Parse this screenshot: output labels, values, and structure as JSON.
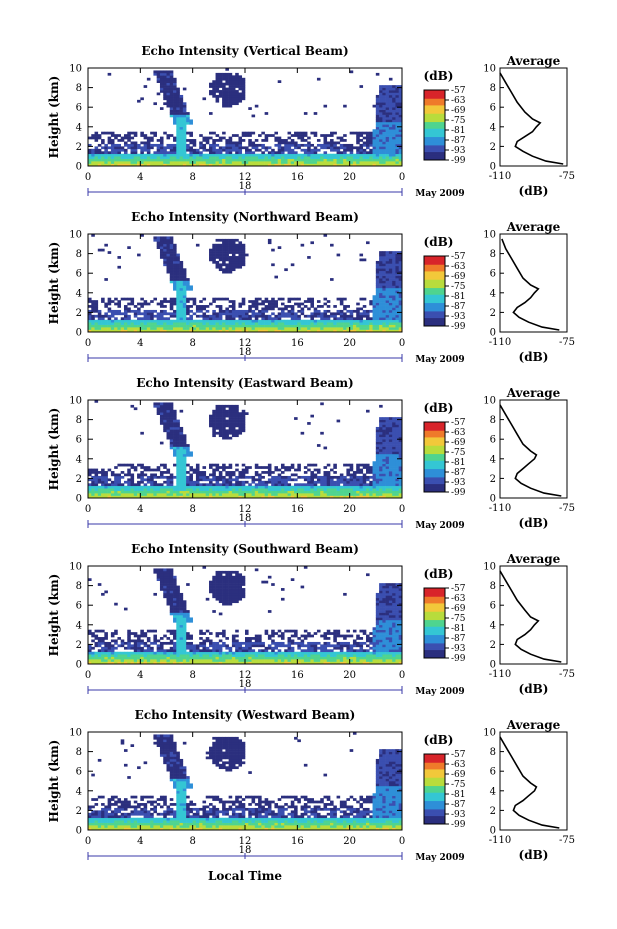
{
  "chart_data": [
    {
      "type": "heatmap",
      "title": "Echo Intensity (Vertical Beam)",
      "ylabel": "Height (km)",
      "xlim": [
        0,
        24
      ],
      "ylim": [
        0,
        10
      ],
      "x_ticks": [
        "0",
        "4",
        "8",
        "12",
        "16",
        "20",
        "0"
      ],
      "y_ticks": [
        "0",
        "2",
        "4",
        "6",
        "8",
        "10"
      ],
      "date_day": "18",
      "date_label": "May 2009",
      "colorbar": {
        "unit": "(dB)",
        "range": [
          -99,
          -57
        ],
        "tick_labels": [
          "-57",
          "-63",
          "-69",
          "-75",
          "-81",
          "-87",
          "-93",
          "-99"
        ]
      },
      "average": {
        "title": "Average",
        "xlabel": "(dB)",
        "x_ticks": [
          "-110",
          "-75"
        ],
        "xlim": [
          -110,
          -75
        ],
        "y_ticks": [
          "0",
          "2",
          "4",
          "6",
          "8",
          "10"
        ],
        "profile": [
          [
            0.2,
            -77
          ],
          [
            0.5,
            -86
          ],
          [
            1.0,
            -93
          ],
          [
            1.5,
            -98
          ],
          [
            2.0,
            -102
          ],
          [
            2.5,
            -101
          ],
          [
            3.0,
            -97
          ],
          [
            3.5,
            -93
          ],
          [
            4.0,
            -91
          ],
          [
            4.4,
            -89
          ],
          [
            4.8,
            -93
          ],
          [
            5.5,
            -97
          ],
          [
            6.5,
            -101
          ],
          [
            7.5,
            -104
          ],
          [
            8.5,
            -107
          ],
          [
            9.5,
            -110
          ]
        ]
      }
    },
    {
      "type": "heatmap",
      "title": "Echo Intensity (Northward Beam)",
      "ylabel": "Height (km)",
      "xlim": [
        0,
        24
      ],
      "ylim": [
        0,
        10
      ],
      "x_ticks": [
        "0",
        "4",
        "8",
        "12",
        "16",
        "20",
        "0"
      ],
      "y_ticks": [
        "0",
        "2",
        "4",
        "6",
        "8",
        "10"
      ],
      "date_day": "18",
      "date_label": "May 2009",
      "colorbar": {
        "unit": "(dB)",
        "range": [
          -99,
          -57
        ],
        "tick_labels": [
          "-57",
          "-63",
          "-69",
          "-75",
          "-81",
          "-87",
          "-93",
          "-99"
        ]
      },
      "average": {
        "title": "Average",
        "xlabel": "(dB)",
        "x_ticks": [
          "-110",
          "-75"
        ],
        "xlim": [
          -110,
          -75
        ],
        "y_ticks": [
          "0",
          "2",
          "4",
          "6",
          "8",
          "10"
        ],
        "profile": [
          [
            0.2,
            -79
          ],
          [
            0.5,
            -88
          ],
          [
            1.0,
            -95
          ],
          [
            1.5,
            -100
          ],
          [
            2.0,
            -103
          ],
          [
            2.5,
            -101
          ],
          [
            3.0,
            -97
          ],
          [
            3.5,
            -94
          ],
          [
            4.0,
            -92
          ],
          [
            4.4,
            -90
          ],
          [
            4.8,
            -94
          ],
          [
            5.5,
            -98
          ],
          [
            6.5,
            -101
          ],
          [
            7.5,
            -104
          ],
          [
            8.5,
            -107
          ],
          [
            9.5,
            -109
          ]
        ]
      }
    },
    {
      "type": "heatmap",
      "title": "Echo Intensity (Eastward Beam)",
      "ylabel": "Height (km)",
      "xlim": [
        0,
        24
      ],
      "ylim": [
        0,
        10
      ],
      "x_ticks": [
        "0",
        "4",
        "8",
        "12",
        "16",
        "20",
        "0"
      ],
      "y_ticks": [
        "0",
        "2",
        "4",
        "6",
        "8",
        "10"
      ],
      "date_day": "18",
      "date_label": "May 2009",
      "colorbar": {
        "unit": "(dB)",
        "range": [
          -99,
          -57
        ],
        "tick_labels": [
          "-57",
          "-63",
          "-69",
          "-75",
          "-81",
          "-87",
          "-93",
          "-99"
        ]
      },
      "average": {
        "title": "Average",
        "xlabel": "(dB)",
        "x_ticks": [
          "-110",
          "-75"
        ],
        "xlim": [
          -110,
          -75
        ],
        "y_ticks": [
          "0",
          "2",
          "4",
          "6",
          "8",
          "10"
        ],
        "profile": [
          [
            0.2,
            -78
          ],
          [
            0.5,
            -87
          ],
          [
            1.0,
            -94
          ],
          [
            1.5,
            -99
          ],
          [
            2.0,
            -102
          ],
          [
            2.5,
            -101
          ],
          [
            3.0,
            -98
          ],
          [
            3.5,
            -95
          ],
          [
            4.0,
            -92
          ],
          [
            4.4,
            -91
          ],
          [
            4.8,
            -94
          ],
          [
            5.5,
            -98
          ],
          [
            6.5,
            -101
          ],
          [
            7.5,
            -104
          ],
          [
            8.5,
            -107
          ],
          [
            9.5,
            -110
          ]
        ]
      }
    },
    {
      "type": "heatmap",
      "title": "Echo Intensity (Southward Beam)",
      "ylabel": "Height (km)",
      "xlim": [
        0,
        24
      ],
      "ylim": [
        0,
        10
      ],
      "x_ticks": [
        "0",
        "4",
        "8",
        "12",
        "16",
        "20",
        "0"
      ],
      "y_ticks": [
        "0",
        "2",
        "4",
        "6",
        "8",
        "10"
      ],
      "date_day": "18",
      "date_label": "May 2009",
      "colorbar": {
        "unit": "(dB)",
        "range": [
          -99,
          -57
        ],
        "tick_labels": [
          "-57",
          "-63",
          "-69",
          "-75",
          "-81",
          "-87",
          "-93",
          "-99"
        ]
      },
      "average": {
        "title": "Average",
        "xlabel": "(dB)",
        "x_ticks": [
          "-110",
          "-75"
        ],
        "xlim": [
          -110,
          -75
        ],
        "y_ticks": [
          "0",
          "2",
          "4",
          "6",
          "8",
          "10"
        ],
        "profile": [
          [
            0.2,
            -78
          ],
          [
            0.5,
            -87
          ],
          [
            1.0,
            -94
          ],
          [
            1.5,
            -99
          ],
          [
            2.0,
            -102
          ],
          [
            2.5,
            -101
          ],
          [
            3.0,
            -97
          ],
          [
            3.5,
            -94
          ],
          [
            4.0,
            -92
          ],
          [
            4.4,
            -90
          ],
          [
            4.8,
            -94
          ],
          [
            5.5,
            -97
          ],
          [
            6.5,
            -101
          ],
          [
            7.5,
            -104
          ],
          [
            8.5,
            -107
          ],
          [
            9.5,
            -110
          ]
        ]
      }
    },
    {
      "type": "heatmap",
      "title": "Echo Intensity (Westward Beam)",
      "ylabel": "Height (km)",
      "xlabel": "Local Time",
      "xlim": [
        0,
        24
      ],
      "ylim": [
        0,
        10
      ],
      "x_ticks": [
        "0",
        "4",
        "8",
        "12",
        "16",
        "20",
        "0"
      ],
      "y_ticks": [
        "0",
        "2",
        "4",
        "6",
        "8",
        "10"
      ],
      "date_day": "18",
      "date_label": "May 2009",
      "colorbar": {
        "unit": "(dB)",
        "range": [
          -99,
          -57
        ],
        "tick_labels": [
          "-57",
          "-63",
          "-69",
          "-75",
          "-81",
          "-87",
          "-93",
          "-99"
        ]
      },
      "average": {
        "title": "Average",
        "xlabel": "(dB)",
        "x_ticks": [
          "-110",
          "-75"
        ],
        "xlim": [
          -110,
          -75
        ],
        "y_ticks": [
          "0",
          "2",
          "4",
          "6",
          "8",
          "10"
        ],
        "profile": [
          [
            0.2,
            -79
          ],
          [
            0.5,
            -88
          ],
          [
            1.0,
            -95
          ],
          [
            1.5,
            -100
          ],
          [
            2.0,
            -103
          ],
          [
            2.5,
            -102
          ],
          [
            3.0,
            -98
          ],
          [
            3.5,
            -95
          ],
          [
            4.0,
            -92
          ],
          [
            4.4,
            -91
          ],
          [
            4.8,
            -94
          ],
          [
            5.5,
            -98
          ],
          [
            6.5,
            -101
          ],
          [
            7.5,
            -104
          ],
          [
            8.5,
            -107
          ],
          [
            9.5,
            -110
          ]
        ]
      }
    }
  ],
  "colors": {
    "colormap": [
      "#2b2f7e",
      "#3b4fb0",
      "#2e8fd8",
      "#34c6d4",
      "#4fd48f",
      "#b8dc3c",
      "#f2c83a",
      "#ef7a2a",
      "#d8242a"
    ],
    "date_marker": "#3a3aa8"
  }
}
